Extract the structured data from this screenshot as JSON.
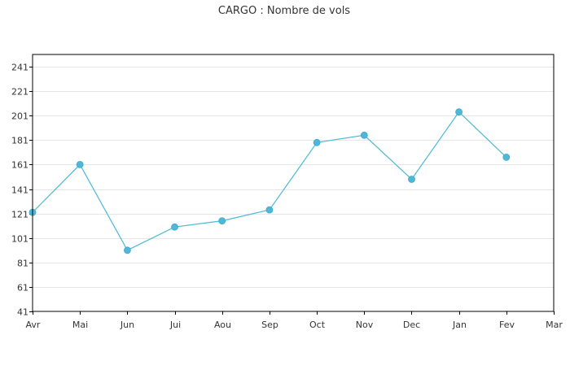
{
  "chart_data": {
    "type": "line",
    "title": "CARGO : Nombre de vols",
    "categories": [
      "Avr",
      "Mai",
      "Jun",
      "Jui",
      "Aou",
      "Sep",
      "Oct",
      "Nov",
      "Dec",
      "Jan",
      "Fev",
      "Mar"
    ],
    "series": [
      {
        "values": [
          122,
          161,
          91,
          110,
          115,
          124,
          179,
          185,
          149,
          204,
          167,
          null
        ],
        "color": "#4db8d8"
      }
    ],
    "ylim": [
      41,
      251
    ],
    "yticks": [
      41,
      61,
      81,
      101,
      121,
      141,
      161,
      181,
      201,
      221,
      241
    ],
    "grid": true,
    "legend": "none"
  }
}
